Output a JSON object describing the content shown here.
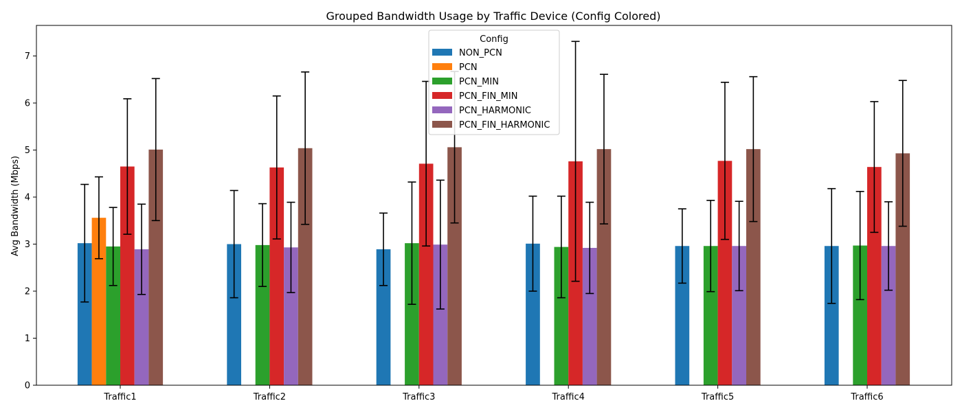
{
  "chart_data": {
    "type": "bar",
    "title": "Grouped Bandwidth Usage by Traffic Device (Config Colored)",
    "xlabel": "",
    "ylabel": "Avg Bandwidth (Mbps)",
    "ylim": [
      0,
      7.65
    ],
    "yticks": [
      0,
      1,
      2,
      3,
      4,
      5,
      6,
      7
    ],
    "categories": [
      "Traffic1",
      "Traffic2",
      "Traffic3",
      "Traffic4",
      "Traffic5",
      "Traffic6"
    ],
    "legend": {
      "title": "Config",
      "placement": "top-center"
    },
    "grid": false,
    "series": [
      {
        "name": "NON_PCN",
        "color": "#1f77b4",
        "values": [
          3.02,
          3.0,
          2.89,
          3.01,
          2.96,
          2.96
        ],
        "error": [
          1.25,
          1.14,
          0.77,
          1.01,
          0.79,
          1.22
        ]
      },
      {
        "name": "PCN",
        "color": "#ff7f0e",
        "values": [
          3.56,
          null,
          null,
          null,
          null,
          null
        ],
        "error": [
          0.87,
          null,
          null,
          null,
          null,
          null
        ]
      },
      {
        "name": "PCN_MIN",
        "color": "#2ca02c",
        "values": [
          2.95,
          2.98,
          3.02,
          2.94,
          2.96,
          2.97
        ],
        "error": [
          0.83,
          0.88,
          1.3,
          1.08,
          0.97,
          1.15
        ]
      },
      {
        "name": "PCN_FIN_MIN",
        "color": "#d62728",
        "values": [
          4.65,
          4.63,
          4.71,
          4.76,
          4.77,
          4.64
        ],
        "error": [
          1.44,
          1.52,
          1.75,
          2.55,
          1.67,
          1.39
        ]
      },
      {
        "name": "PCN_HARMONIC",
        "color": "#9467bd",
        "values": [
          2.89,
          2.93,
          2.99,
          2.92,
          2.96,
          2.96
        ],
        "error": [
          0.96,
          0.96,
          1.37,
          0.97,
          0.95,
          0.94
        ]
      },
      {
        "name": "PCN_FIN_HARMONIC",
        "color": "#8c564b",
        "values": [
          5.01,
          5.04,
          5.06,
          5.02,
          5.02,
          4.93
        ],
        "error": [
          1.51,
          1.62,
          1.61,
          1.59,
          1.54,
          1.55
        ]
      }
    ]
  }
}
